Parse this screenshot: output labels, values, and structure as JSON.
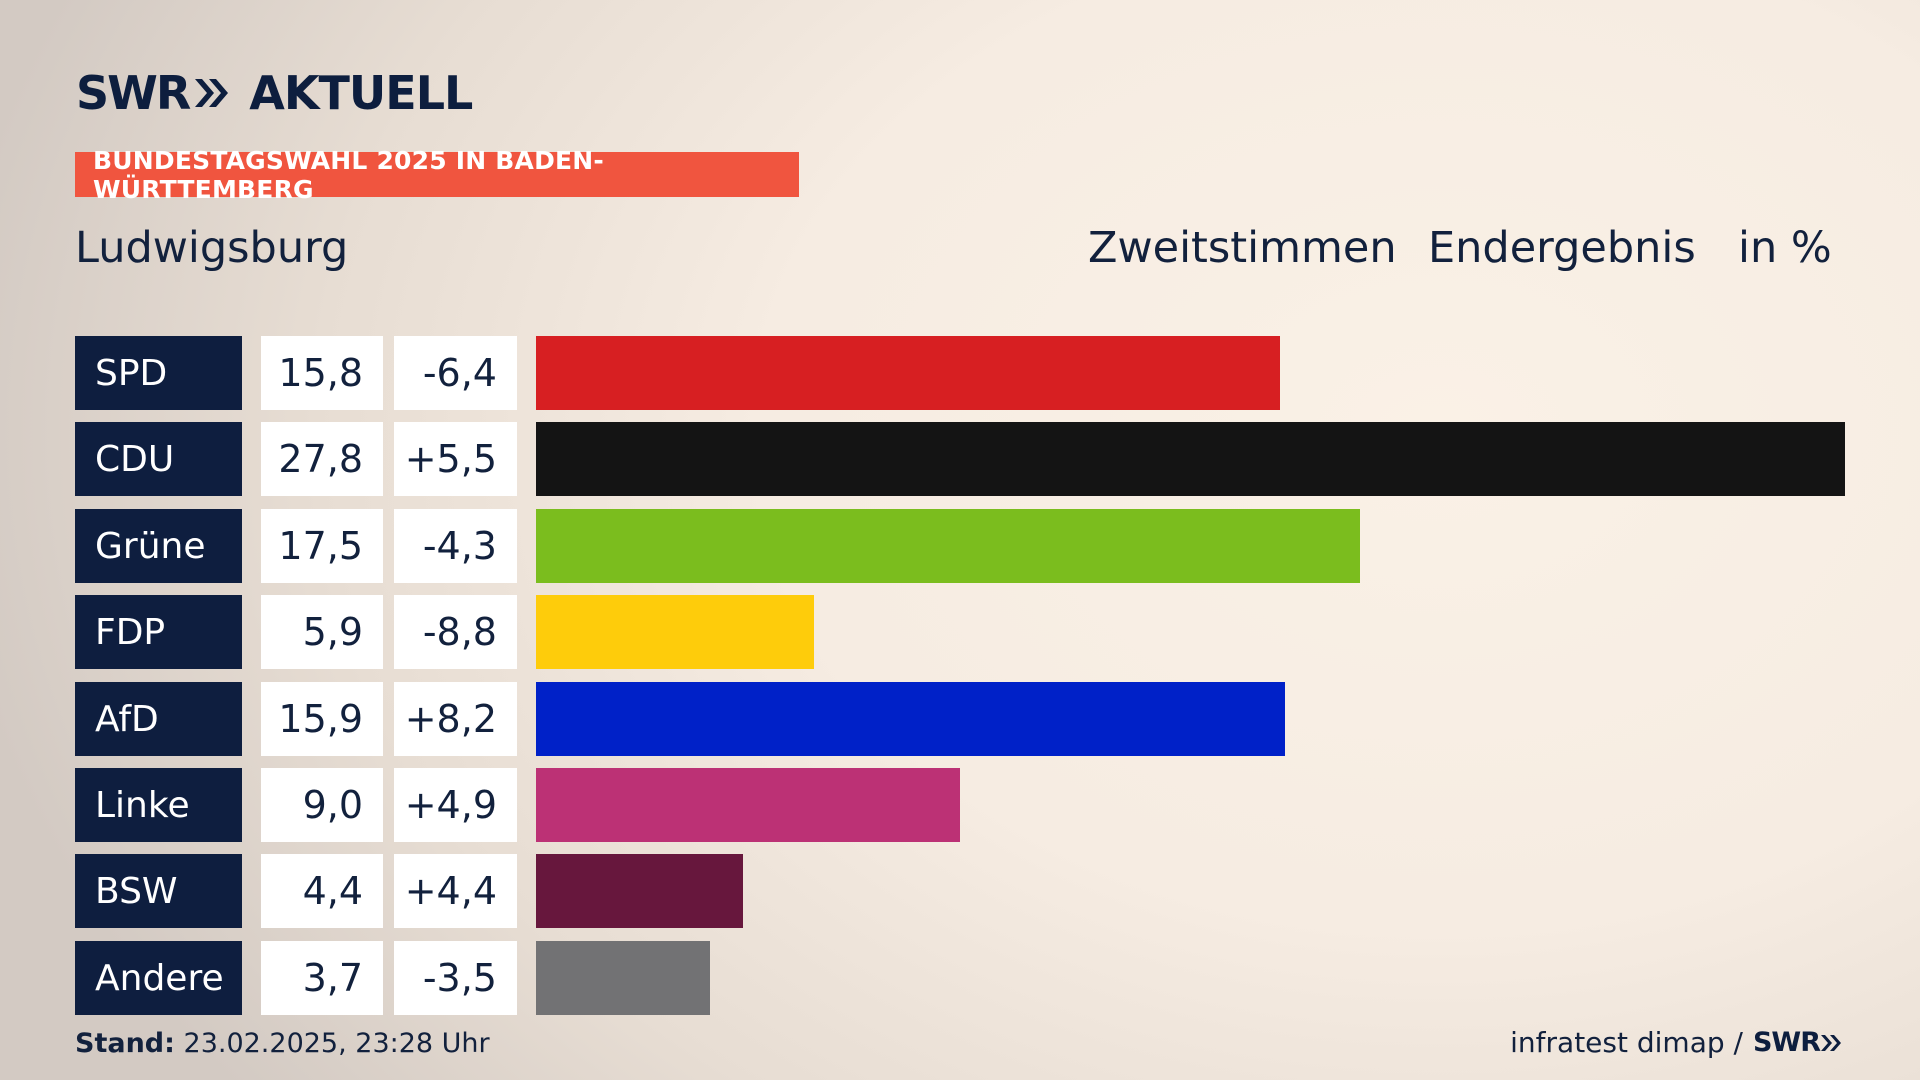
{
  "brand": {
    "logo_left": "SWR",
    "logo_right": "AKTUELL",
    "icon": "double-chevron-right-icon"
  },
  "banner": "BUNDESTAGSWAHL 2025 IN BADEN-WÜRTTEMBERG",
  "place": "Ludwigsburg",
  "header": {
    "type": "Zweitstimmen",
    "status": "Endergebnis",
    "unit": "in %"
  },
  "chart_data": {
    "type": "bar",
    "orientation": "horizontal",
    "categories": [
      "SPD",
      "CDU",
      "Grüne",
      "FDP",
      "AfD",
      "Linke",
      "BSW",
      "Andere"
    ],
    "values": [
      15.8,
      27.8,
      17.5,
      5.9,
      15.9,
      9.0,
      4.4,
      3.7
    ],
    "value_labels": [
      "15,8",
      "27,8",
      "17,5",
      "5,9",
      "15,9",
      "9,0",
      "4,4",
      "3,7"
    ],
    "change": [
      -6.4,
      5.5,
      -4.3,
      -8.8,
      8.2,
      4.9,
      4.4,
      -3.5
    ],
    "change_labels": [
      "-6,4",
      "+5,5",
      "-4,3",
      "-8,8",
      "+8,2",
      "+4,9",
      "+4,4",
      "-3,5"
    ],
    "colors": [
      "#d71f22",
      "#141414",
      "#7bbd1e",
      "#fecc0b",
      "#0021c8",
      "#bc3175",
      "#67173d",
      "#727274"
    ],
    "xlim": [
      0,
      27.8
    ]
  },
  "footer": {
    "stand_label": "Stand:",
    "stand_value": "23.02.2025, 23:28 Uhr",
    "source": "infratest dimap /",
    "source_logo": "SWR"
  }
}
